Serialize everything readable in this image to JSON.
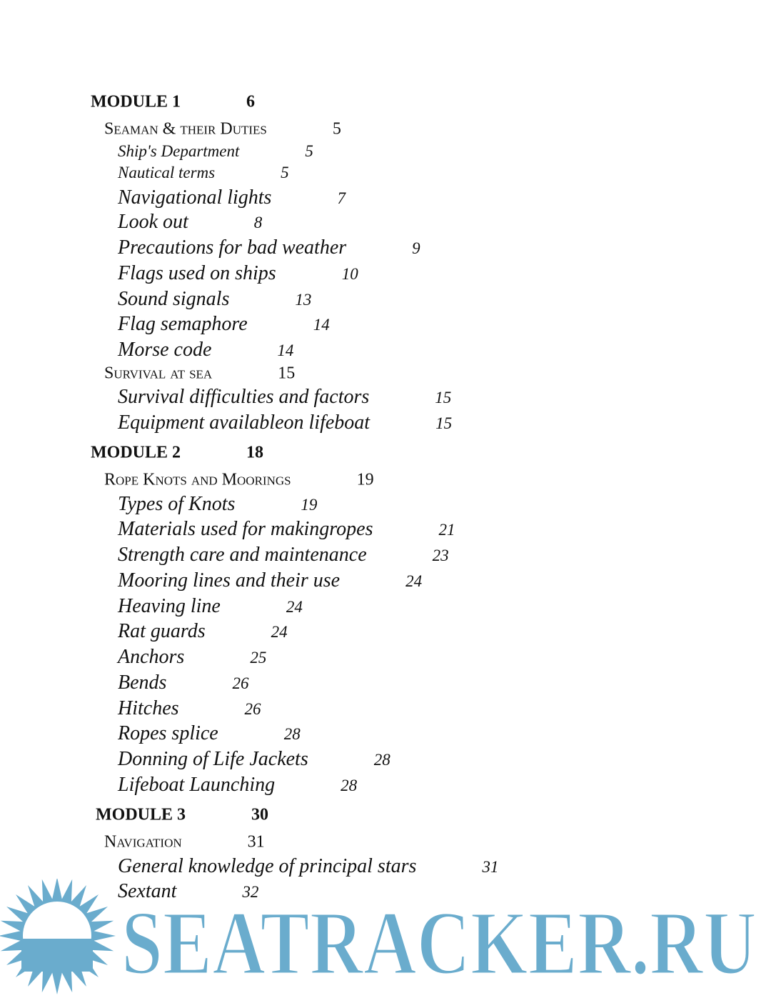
{
  "modules": [
    {
      "title": "MODULE 1",
      "page": 6,
      "sections": [
        {
          "title": "Seaman & their Duties",
          "page": 5,
          "items": [
            {
              "title": "Ship's Department",
              "page": 5
            },
            {
              "title": "Nautical terms",
              "page": 5
            },
            {
              "title": "Navigational lights",
              "page": 7
            },
            {
              "title": "Look out",
              "page": 8
            },
            {
              "title": "Precautions for bad weather",
              "page": 9
            },
            {
              "title": "Flags used on ships",
              "page": 10
            },
            {
              "title": "Sound signals",
              "page": 13
            },
            {
              "title": "Flag semaphore",
              "page": 14
            },
            {
              "title": "Morse code",
              "page": 14
            }
          ]
        },
        {
          "title": "Survival at sea",
          "page": 15,
          "items": [
            {
              "title": "Survival difficulties and factors",
              "page": 15
            },
            {
              "title": "Equipment availableon lifeboat",
              "page": 15
            }
          ]
        }
      ]
    },
    {
      "title": "MODULE 2",
      "page": 18,
      "sections": [
        {
          "title": "Rope Knots and Moorings",
          "page": 19,
          "items": [
            {
              "title": "Types of Knots",
              "page": 19
            },
            {
              "title": "Materials used for makingropes",
              "page": 21
            },
            {
              "title": "Strength care and maintenance",
              "page": 23
            },
            {
              "title": "Mooring lines and their use",
              "page": 24
            },
            {
              "title": "Heaving line",
              "page": 24
            },
            {
              "title": "Rat guards",
              "page": 24
            },
            {
              "title": "Anchors",
              "page": 25
            },
            {
              "title": "Bends",
              "page": 26
            },
            {
              "title": "Hitches",
              "page": 26
            },
            {
              "title": "Ropes splice",
              "page": 28
            },
            {
              "title": "Donning of Life Jackets",
              "page": 28
            },
            {
              "title": "Lifeboat Launching",
              "page": 28
            }
          ]
        }
      ]
    },
    {
      "title": "MODULE 3",
      "page": 30,
      "sections": [
        {
          "title": "Navigation",
          "page": 31,
          "items": [
            {
              "title": "General knowledge of principal stars",
              "page": 31
            },
            {
              "title": "Sextant",
              "page": 32
            }
          ]
        }
      ]
    }
  ],
  "logo": {
    "text": "SEATRACKER.RU"
  }
}
